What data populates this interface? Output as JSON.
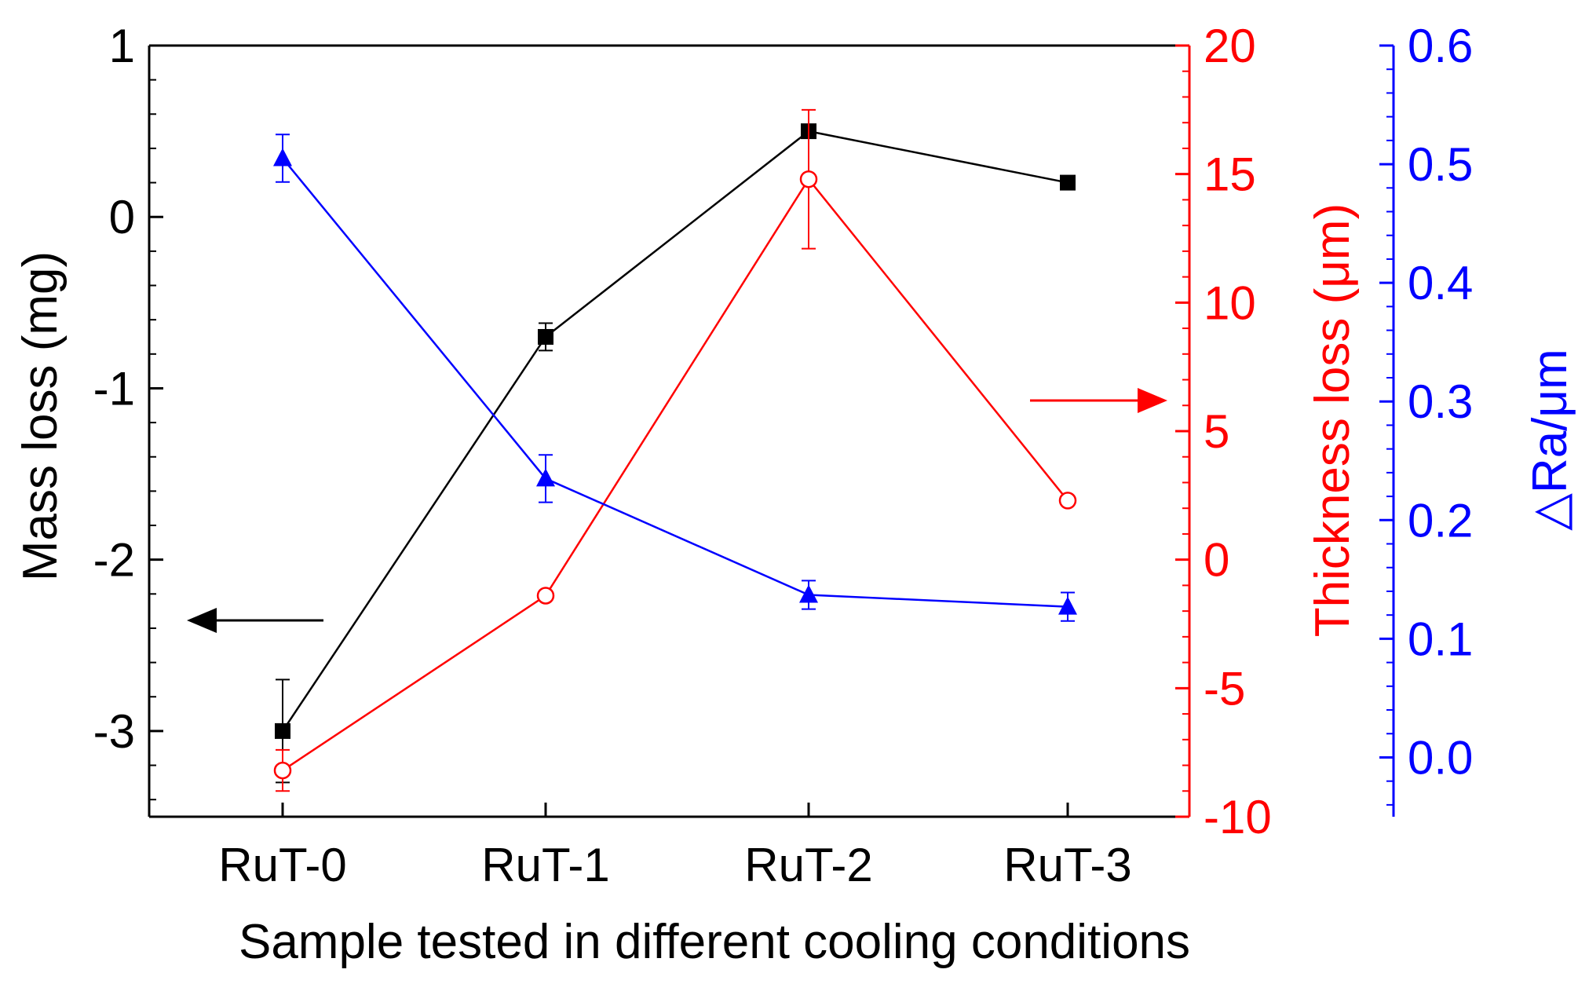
{
  "chart_data": {
    "type": "line",
    "xlabel": "Sample tested in different cooling conditions",
    "categories": [
      "RuT-0",
      "RuT-1",
      "RuT-2",
      "RuT-3"
    ],
    "axes": {
      "left": {
        "label": "Mass loss (mg)",
        "ylim": [
          -3.5,
          1
        ],
        "ticks": [
          -3,
          -2,
          -1,
          0,
          1
        ],
        "tick_labels": [
          "-3",
          "-2",
          "-1",
          "0",
          "1"
        ],
        "color": "#000000"
      },
      "right1": {
        "label": "Thickness loss (μm)",
        "ylim": [
          -10,
          20
        ],
        "ticks": [
          -10,
          -5,
          0,
          5,
          10,
          15,
          20
        ],
        "tick_labels": [
          "-10",
          "-5",
          "0",
          "5",
          "10",
          "15",
          "20"
        ],
        "color": "#ff0000"
      },
      "right2": {
        "label": "△Ra/μm",
        "ylim": [
          -0.05,
          0.6
        ],
        "ticks": [
          0,
          0.1,
          0.2,
          0.3,
          0.4,
          0.5,
          0.6
        ],
        "tick_labels": [
          "0.0",
          "0.1",
          "0.2",
          "0.3",
          "0.4",
          "0.5",
          "0.6"
        ],
        "color": "#0000ff"
      }
    },
    "series": [
      {
        "name": "Mass loss",
        "axis": "left",
        "marker": "square",
        "color": "#000000",
        "values": [
          -3.0,
          -0.7,
          0.5,
          0.2
        ],
        "errors": [
          0.3,
          0.08,
          0.03,
          0
        ]
      },
      {
        "name": "Thickness loss",
        "axis": "right1",
        "marker": "open-circle",
        "color": "#ff0000",
        "values": [
          -8.2,
          -1.4,
          14.8,
          2.3
        ],
        "errors": [
          0.8,
          0,
          2.7,
          0
        ]
      },
      {
        "name": "ΔRa",
        "axis": "right2",
        "marker": "triangle",
        "color": "#0000ff",
        "values": [
          0.505,
          0.235,
          0.137,
          0.127
        ],
        "errors": [
          0.02,
          0.02,
          0.012,
          0.012
        ]
      }
    ],
    "annotations": [
      {
        "type": "arrow",
        "points_to": "left-axis",
        "color": "#000000"
      },
      {
        "type": "arrow",
        "points_to": "right-axis",
        "color": "#ff0000"
      }
    ]
  }
}
